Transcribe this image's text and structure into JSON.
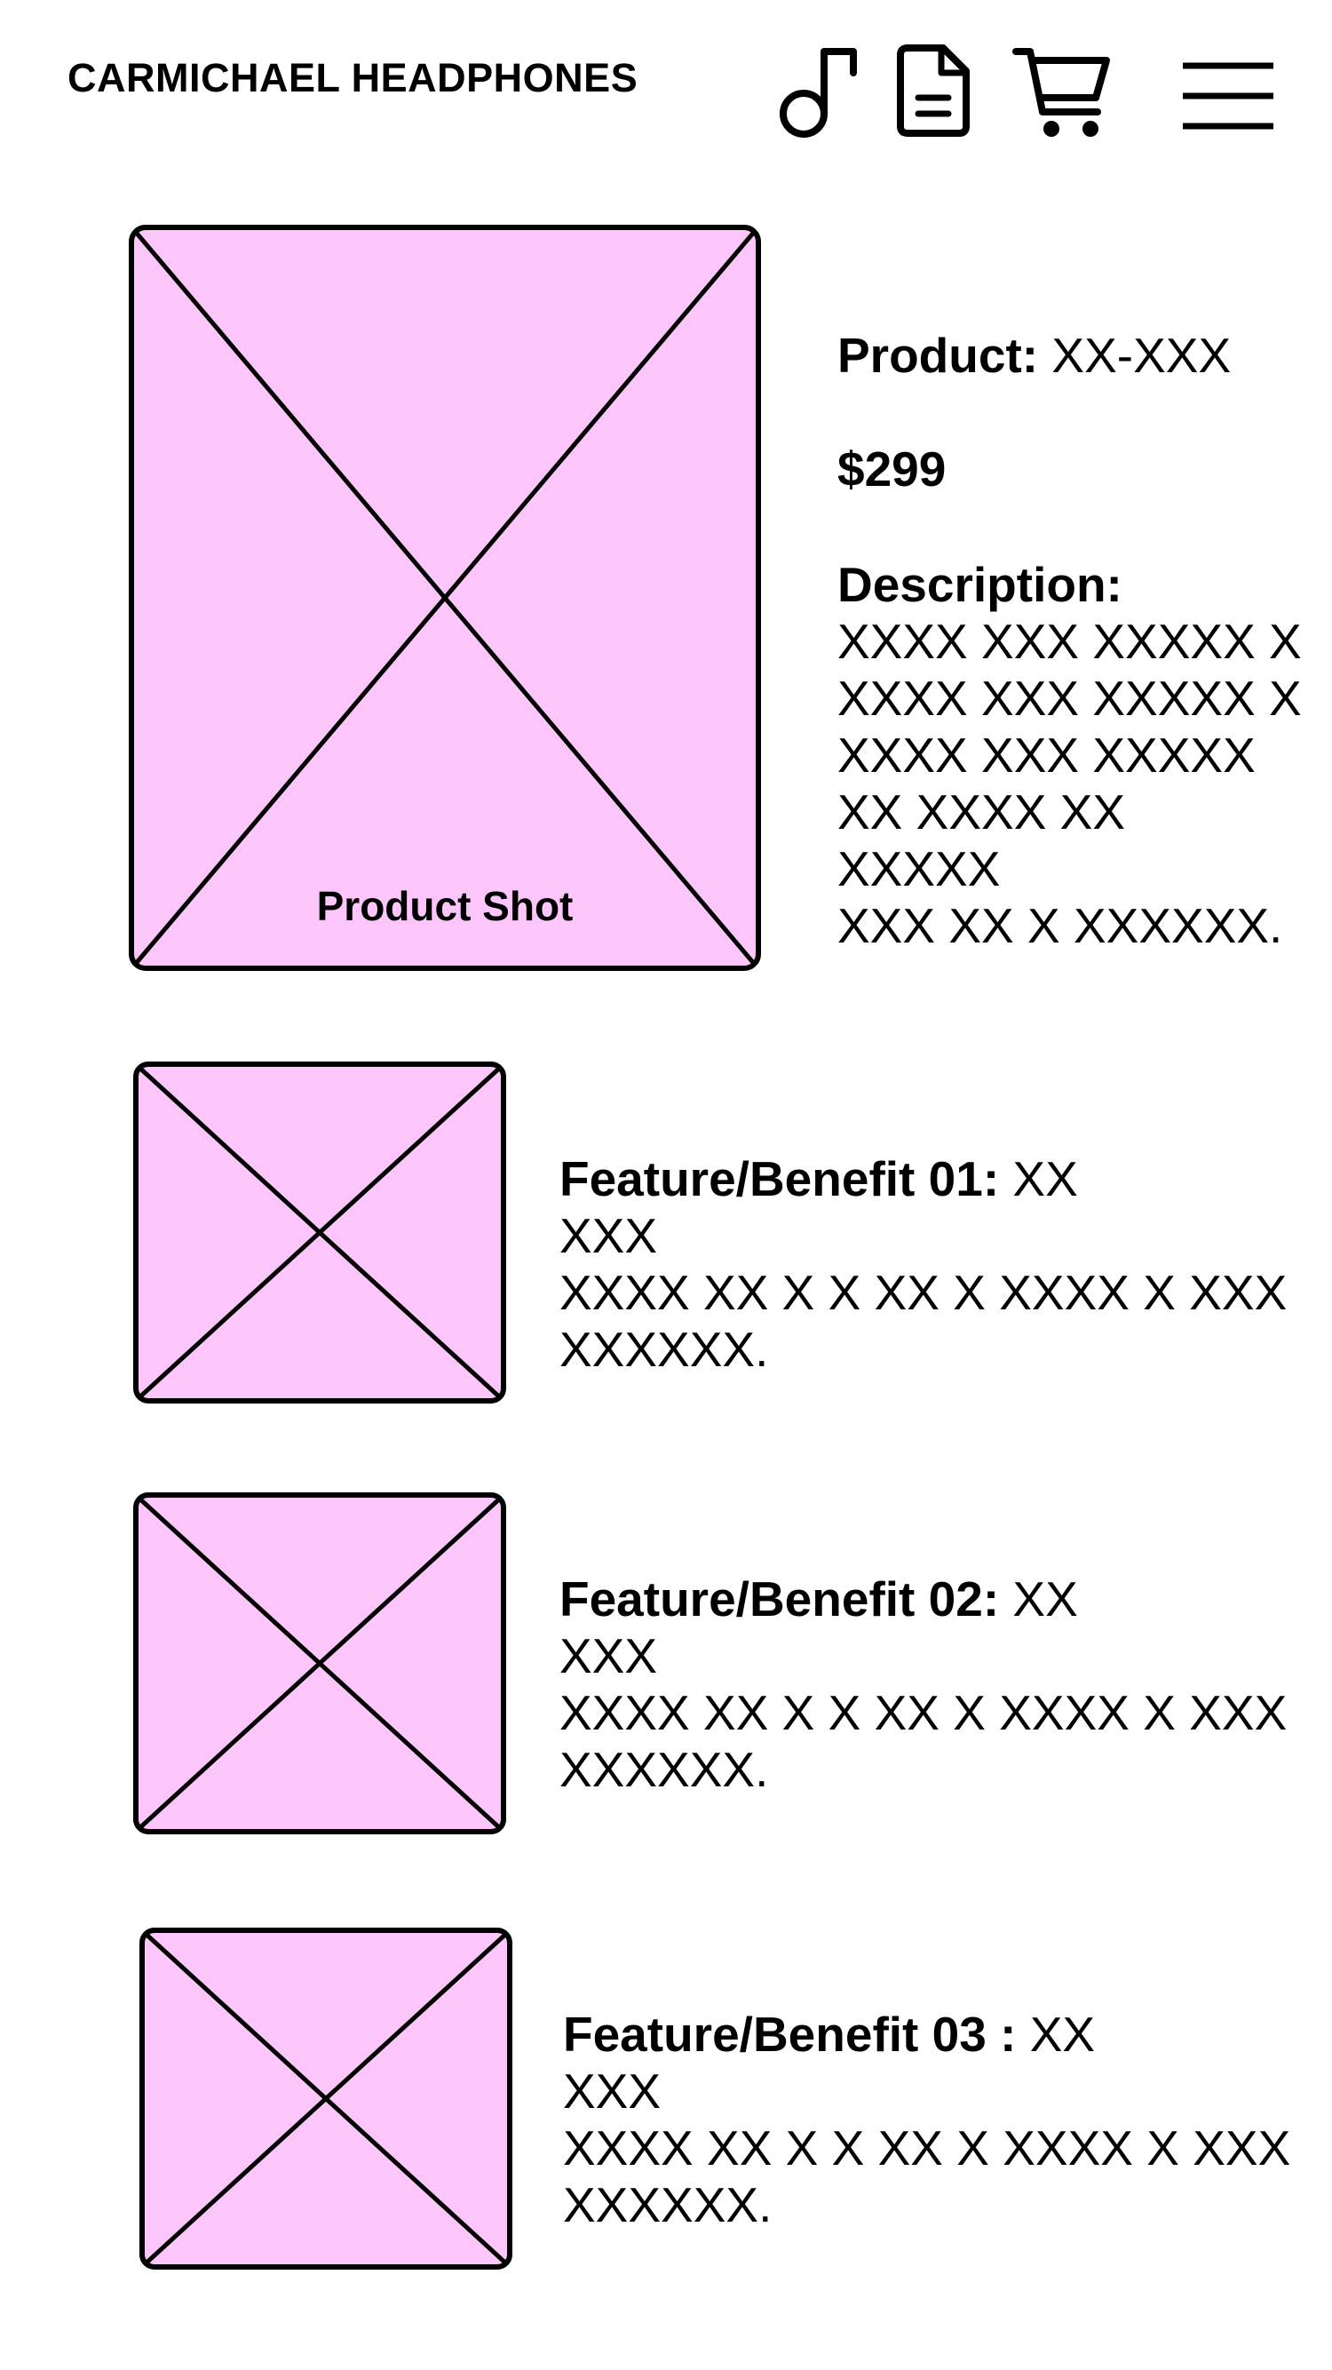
{
  "header": {
    "brand": "CARMICHAEL HEADPHONES",
    "icons": [
      "music-note-icon",
      "document-icon",
      "cart-icon",
      "menu-icon"
    ]
  },
  "colors": {
    "placeholder_fill": "#fcc6fa",
    "stroke": "#000000",
    "background": "#ffffff"
  },
  "hero": {
    "image_label": "Product Shot"
  },
  "product": {
    "product_label": "Product:",
    "product_value": " XX-XXX",
    "price": "$299",
    "description_label": "Description:",
    "description_lines": [
      "XXXX XXX XXXXX X",
      "XXXX XXX XXXXX X",
      "XXXX XXX XXXXX",
      "XX XXXX XX",
      "XXXXX",
      "XXX XX X XXXXXX."
    ]
  },
  "features": [
    {
      "title": "Feature/Benefit 01:",
      "title_suffix": " XX",
      "lines": [
        "XXX",
        "XXXX XX X X XX X XXXX X XXX",
        "XXXXXX."
      ]
    },
    {
      "title": "Feature/Benefit 02:",
      "title_suffix": " XX",
      "lines": [
        "XXX",
        "XXXX XX X X XX X XXXX X XXX",
        "XXXXXX."
      ]
    },
    {
      "title": "Feature/Benefit 03 :",
      "title_suffix": " XX",
      "lines": [
        "XXX",
        "XXXX XX X X XX X XXXX X XXX",
        "XXXXXX."
      ]
    }
  ]
}
